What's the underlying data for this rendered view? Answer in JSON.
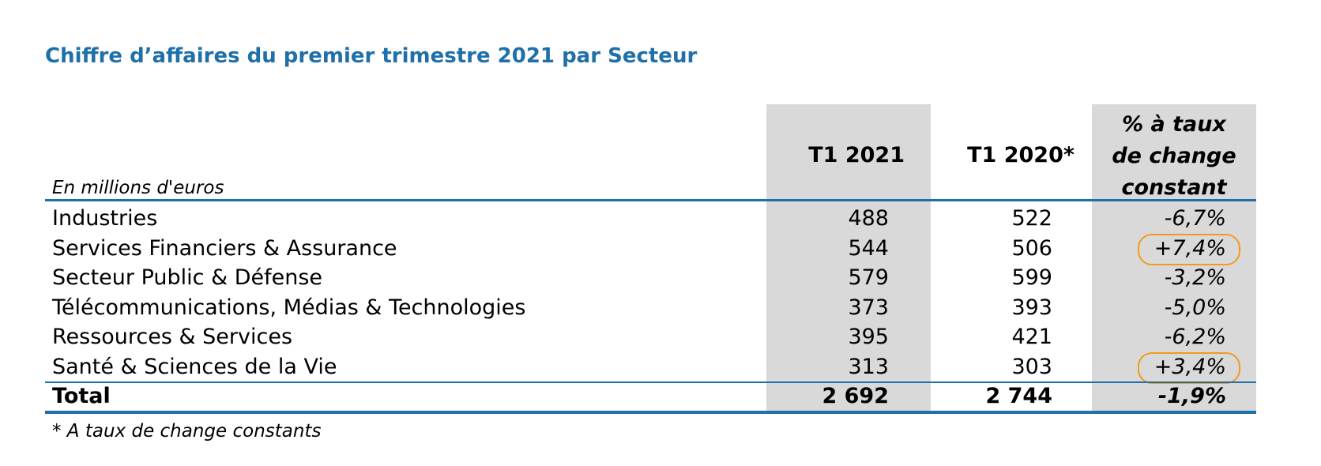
{
  "title": "Chiffre d’affaires du premier trimestre 2021 par Secteur",
  "unit_label": "En millions d'euros",
  "headers": {
    "t1_2021": "T1 2021",
    "t1_2020": "T1 2020*",
    "pct_line1": "% à taux",
    "pct_line2": "de change",
    "pct_line3": "constant"
  },
  "rows": [
    {
      "label": "Industries",
      "t1_2021": "488",
      "t1_2020": "522",
      "pct": "-6,7%",
      "highlighted": false
    },
    {
      "label": "Services Financiers & Assurance",
      "t1_2021": "544",
      "t1_2020": "506",
      "pct": "+7,4%",
      "highlighted": true
    },
    {
      "label": "Secteur Public & Défense",
      "t1_2021": "579",
      "t1_2020": "599",
      "pct": "-3,2%",
      "highlighted": false
    },
    {
      "label": "Télécommunications, Médias & Technologies",
      "t1_2021": "373",
      "t1_2020": "393",
      "pct": "-5,0%",
      "highlighted": false
    },
    {
      "label": "Ressources & Services",
      "t1_2021": "395",
      "t1_2020": "421",
      "pct": "-6,2%",
      "highlighted": false
    },
    {
      "label": "Santé & Sciences de la Vie",
      "t1_2021": "313",
      "t1_2020": "303",
      "pct": "+3,4%",
      "highlighted": true
    }
  ],
  "total": {
    "label": "Total",
    "t1_2021": "2 692",
    "t1_2020": "2 744",
    "pct": "-1,9%"
  },
  "footnote": "* A taux de change constants",
  "colors": {
    "title": "#1f6fa8",
    "rule": "#1f6fa8",
    "shade": "#d9d9d9",
    "highlight_circle": "#f29a1f"
  }
}
